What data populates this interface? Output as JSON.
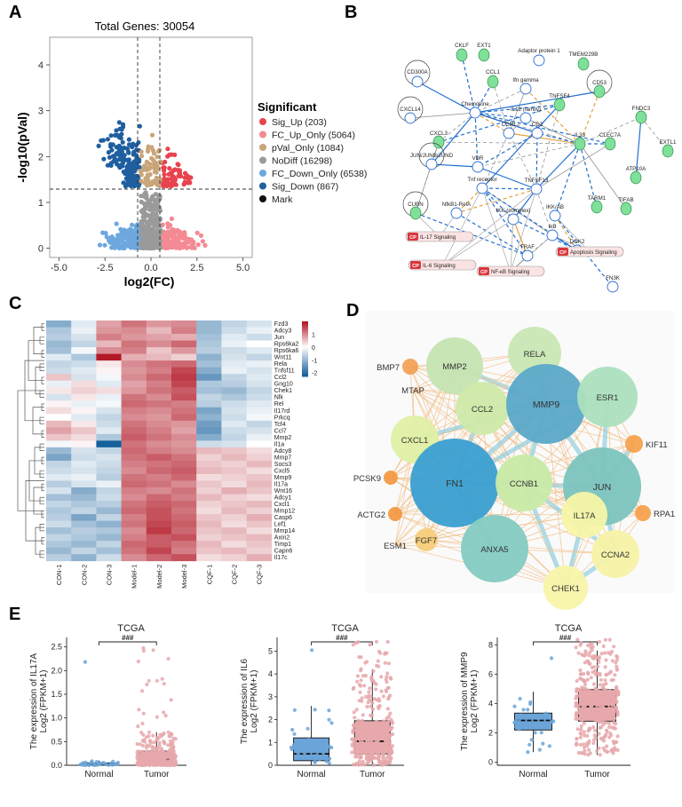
{
  "panel_labels": {
    "a": "A",
    "b": "B",
    "c": "C",
    "d": "D",
    "e": "E"
  },
  "volcano": {
    "title": "Total Genes: 30054",
    "xlabel": "log2(FC)",
    "ylabel": "-log10(pVal)",
    "legend_title": "Significant",
    "legend": [
      {
        "label": "Sig_Up (203)",
        "color": "#e8434f"
      },
      {
        "label": "FC_Up_Only (5064)",
        "color": "#f48a93"
      },
      {
        "label": "pVal_Only (1084)",
        "color": "#c9a57a"
      },
      {
        "label": "NoDiff (16298)",
        "color": "#9a9a9a"
      },
      {
        "label": "FC_Down_Only (6538)",
        "color": "#6ea7de"
      },
      {
        "label": "Sig_Down (867)",
        "color": "#1f5fa0"
      },
      {
        "label": "Mark",
        "color": "#111111"
      }
    ],
    "xticks": [
      "-5.0",
      "-2.5",
      "0.0",
      "2.5",
      "5.0"
    ],
    "yticks": [
      "0",
      "1",
      "2",
      "3",
      "4"
    ]
  },
  "network_b": {
    "nodes": [
      "CD300A",
      "CKLF",
      "EXT1",
      "CCL1",
      "Adaptor protein 1",
      "TMEM229B",
      "Ifn gamma",
      "CD53",
      "CXCL14",
      "Chemokine",
      "IL12 (family)",
      "TNFSF4",
      "FNDC3",
      "CXCL3",
      "CCR1",
      "CD3",
      "IL33",
      "CLEC7A",
      "EXTL1",
      "JUN/JUNB/JUND",
      "VDR",
      "Tnf receptor",
      "TNFSF13",
      "IKK/AB",
      "ATP10A",
      "NfkB1-RelA",
      "IKK (complex)",
      "IkB",
      "TARM1",
      "TIFAB",
      "CUBN",
      "TRAF",
      "DOK2",
      "FN3K"
    ],
    "signaling": [
      "IL-17 Signaling",
      "IL-6 Signaling",
      "NF-κB Signaling",
      "Apoptosis Signaling"
    ],
    "cp_tag": "CP"
  },
  "heatmap": {
    "columns": [
      "CON-1",
      "CON-2",
      "CON-3",
      "Model-1",
      "Model-2",
      "Model-3",
      "CQF-1",
      "CQF-2",
      "CQF-3"
    ],
    "rows": [
      "Fzd3",
      "Adcy3",
      "Jun",
      "Rps6ka2",
      "Rps6ka6",
      "Wnt11",
      "Rela",
      "Tnfsf11",
      "Ccl2",
      "Gng10",
      "Chek1",
      "Nlk",
      "Rel",
      "Il17rd",
      "Prkcq",
      "Tcf4",
      "Ccl7",
      "Mmp2",
      "Il1a",
      "Adcy8",
      "Mmp7",
      "Socs3",
      "Cxcl5",
      "Mmp9",
      "Il17a",
      "Wnt16",
      "Adcy1",
      "Cxcl1",
      "Mmp12",
      "Casp6",
      "Lef1",
      "Mmp14",
      "Axin2",
      "Timp1",
      "Capn6",
      "Il17c"
    ],
    "values": [
      [
        -1.2,
        -0.3,
        0.8,
        1.2,
        0.9,
        1.0,
        -1.0,
        -0.6,
        -0.4
      ],
      [
        -0.8,
        -0.2,
        0.9,
        1.0,
        0.6,
        1.1,
        -1.0,
        -0.5,
        -0.2
      ],
      [
        -0.7,
        -0.4,
        1.1,
        0.9,
        0.8,
        0.7,
        -0.9,
        -0.3,
        -0.5
      ],
      [
        -1.0,
        -0.6,
        0.6,
        1.2,
        1.0,
        1.3,
        -0.8,
        -0.2,
        0.0
      ],
      [
        -0.9,
        -0.1,
        1.0,
        1.1,
        0.5,
        0.9,
        -0.7,
        -0.5,
        -0.3
      ],
      [
        -0.3,
        -0.8,
        2.0,
        0.7,
        0.6,
        0.4,
        -1.1,
        -0.4,
        -0.6
      ],
      [
        -0.6,
        -0.5,
        0.2,
        1.0,
        1.2,
        1.3,
        -0.9,
        -0.3,
        -0.2
      ],
      [
        -0.5,
        -0.3,
        0.1,
        0.9,
        1.1,
        1.6,
        -1.2,
        -0.2,
        -0.4
      ],
      [
        0.5,
        -0.4,
        -0.1,
        1.0,
        1.3,
        1.7,
        -1.5,
        -0.6,
        -0.3
      ],
      [
        -0.2,
        0.3,
        -0.3,
        0.8,
        1.1,
        1.6,
        -0.8,
        -0.7,
        -0.4
      ],
      [
        0.2,
        0.4,
        0.3,
        0.9,
        1.2,
        1.4,
        -0.9,
        -1.0,
        -0.6
      ],
      [
        -0.4,
        0.2,
        -0.2,
        1.2,
        1.0,
        1.5,
        -0.6,
        -0.8,
        -0.5
      ],
      [
        0.1,
        -0.2,
        -0.1,
        1.3,
        1.2,
        1.1,
        -0.7,
        -0.5,
        -0.3
      ],
      [
        0.3,
        0.1,
        -0.4,
        1.1,
        1.0,
        1.2,
        -1.3,
        -0.4,
        -0.2
      ],
      [
        0.0,
        -0.3,
        -0.6,
        1.0,
        0.9,
        1.3,
        -1.1,
        -0.5,
        -0.1
      ],
      [
        0.6,
        0.2,
        -0.5,
        1.2,
        1.0,
        0.9,
        -1.4,
        -0.3,
        -0.6
      ],
      [
        0.8,
        0.5,
        -0.3,
        1.3,
        1.1,
        0.8,
        -1.5,
        -0.5,
        -0.4
      ],
      [
        0.5,
        0.3,
        -0.8,
        1.4,
        1.2,
        1.0,
        -1.2,
        -0.6,
        -0.2
      ],
      [
        -0.1,
        0.1,
        -2.3,
        1.2,
        1.0,
        0.9,
        -0.5,
        -0.4,
        0.0
      ],
      [
        -1.0,
        -0.4,
        -0.6,
        1.3,
        1.1,
        1.0,
        0.6,
        0.5,
        0.3
      ],
      [
        -1.3,
        -0.5,
        -0.4,
        1.2,
        1.4,
        1.2,
        0.4,
        0.6,
        0.4
      ],
      [
        -0.6,
        -0.3,
        -0.5,
        1.1,
        1.2,
        1.3,
        0.5,
        0.4,
        0.6
      ],
      [
        -0.5,
        -0.4,
        -0.6,
        1.0,
        1.3,
        1.4,
        0.6,
        0.5,
        0.3
      ],
      [
        -0.3,
        -0.2,
        -0.7,
        1.2,
        1.1,
        1.3,
        0.3,
        0.4,
        0.5
      ],
      [
        -0.7,
        -0.4,
        -0.2,
        1.3,
        1.2,
        1.0,
        0.5,
        0.3,
        0.6
      ],
      [
        -0.4,
        -1.2,
        -0.6,
        1.1,
        1.0,
        1.2,
        0.4,
        0.7,
        0.5
      ],
      [
        -0.9,
        -1.0,
        -0.5,
        1.0,
        1.3,
        1.1,
        0.6,
        0.4,
        0.3
      ],
      [
        -0.6,
        -0.8,
        -0.7,
        1.2,
        1.4,
        1.3,
        0.4,
        0.5,
        0.6
      ],
      [
        -0.8,
        -0.6,
        -1.0,
        1.3,
        1.5,
        1.2,
        0.3,
        0.6,
        0.4
      ],
      [
        -0.7,
        -1.3,
        -0.6,
        1.1,
        1.5,
        1.3,
        0.5,
        0.4,
        0.7
      ],
      [
        -0.5,
        -0.9,
        -1.1,
        1.2,
        1.6,
        1.4,
        0.6,
        0.3,
        0.5
      ],
      [
        -0.9,
        -0.7,
        -0.8,
        1.0,
        1.7,
        1.3,
        0.5,
        0.6,
        0.3
      ],
      [
        -0.6,
        -0.8,
        -1.0,
        1.1,
        1.4,
        1.5,
        0.4,
        0.5,
        0.6
      ],
      [
        -0.8,
        -1.0,
        -0.6,
        1.3,
        1.4,
        1.2,
        0.6,
        0.3,
        0.5
      ],
      [
        -1.0,
        -0.6,
        -0.9,
        1.2,
        1.6,
        1.1,
        0.5,
        0.6,
        0.4
      ],
      [
        -0.7,
        -1.1,
        -0.5,
        1.0,
        1.3,
        1.5,
        0.3,
        0.4,
        0.7
      ]
    ],
    "scale_ticks": [
      "1",
      "0",
      "-1",
      "-2"
    ]
  },
  "network_d": {
    "nodes": [
      {
        "label": "MMP2",
        "color": "#c5e4b2"
      },
      {
        "label": "RELA",
        "color": "#c9e7b4"
      },
      {
        "label": "BMP7",
        "color": "#f2a257"
      },
      {
        "label": "MTAP",
        "color": "#f7c89a"
      },
      {
        "label": "CCL2",
        "color": "#cfe9a9"
      },
      {
        "label": "MMP9",
        "color": "#5ba9c8"
      },
      {
        "label": "ESR1",
        "color": "#ace0be"
      },
      {
        "label": "CXCL1",
        "color": "#dff0a4"
      },
      {
        "label": "KIF11",
        "color": "#f5a24f"
      },
      {
        "label": "PCSK9",
        "color": "#f29a45"
      },
      {
        "label": "FN1",
        "color": "#3a9fd1"
      },
      {
        "label": "CCNB1",
        "color": "#c8eaa6"
      },
      {
        "label": "JUN",
        "color": "#7cc4bf"
      },
      {
        "label": "ACTG2",
        "color": "#f29a45"
      },
      {
        "label": "RPA1",
        "color": "#f5a24f"
      },
      {
        "label": "IL17A",
        "color": "#f7f5a6"
      },
      {
        "label": "ESM1",
        "color": "#f3b77e"
      },
      {
        "label": "FGF7",
        "color": "#f7cd7a"
      },
      {
        "label": "ANXA5",
        "color": "#84cbc2"
      },
      {
        "label": "CCNA2",
        "color": "#f7f2a6"
      },
      {
        "label": "CHEK1",
        "color": "#f8f4a8"
      }
    ]
  },
  "boxplots": [
    {
      "title": "TCGA",
      "ylabel1": "The expression of IL17A",
      "ylabel2": "Log2 (FPKM+1)",
      "sig": "###",
      "yticks": [
        "0.0",
        "0.5",
        "1.0",
        "1.5",
        "2.0",
        "2.5"
      ],
      "ylim": [
        0,
        2.7
      ],
      "groups": [
        {
          "name": "Normal",
          "min": 0.0,
          "q1": 0.01,
          "median": 0.03,
          "q3": 0.05,
          "max": 0.1,
          "color": "#6ba4d8",
          "n": 35
        },
        {
          "name": "Tumor",
          "min": 0.0,
          "q1": 0.04,
          "median": 0.12,
          "q3": 0.3,
          "max": 0.7,
          "color": "#e6a8ab",
          "n": 350
        }
      ]
    },
    {
      "title": "TCGA",
      "ylabel1": "The expression of IL6",
      "ylabel2": "Log2 (FPKM+1)",
      "sig": "###",
      "yticks": [
        "0",
        "1",
        "2",
        "3",
        "4",
        "5"
      ],
      "ylim": [
        0,
        5.6
      ],
      "groups": [
        {
          "name": "Normal",
          "min": 0.0,
          "q1": 0.2,
          "median": 0.5,
          "q3": 1.2,
          "max": 2.6,
          "color": "#6ba4d8",
          "n": 35
        },
        {
          "name": "Tumor",
          "min": 0.0,
          "q1": 0.5,
          "median": 1.05,
          "q3": 1.95,
          "max": 4.2,
          "color": "#e6a8ab",
          "n": 350
        }
      ]
    },
    {
      "title": "TCGA",
      "ylabel1": "The expression of MMP9",
      "ylabel2": "Log2 (FPKM+1)",
      "sig": "###",
      "yticks": [
        "0",
        "2",
        "4",
        "6",
        "8"
      ],
      "ylim": [
        -0.2,
        8.5
      ],
      "groups": [
        {
          "name": "Normal",
          "min": 0.7,
          "q1": 2.2,
          "median": 2.85,
          "q3": 3.35,
          "max": 4.8,
          "color": "#6ba4d8",
          "n": 35
        },
        {
          "name": "Tumor",
          "min": 0.5,
          "q1": 2.8,
          "median": 3.8,
          "q3": 4.95,
          "max": 7.6,
          "color": "#e6a8ab",
          "n": 350
        }
      ]
    }
  ],
  "chart_data": [
    {
      "type": "scatter",
      "title": "Total Genes: 30054",
      "xlabel": "log2(FC)",
      "ylabel": "-log10(pVal)",
      "xlim": [
        -5.5,
        5.5
      ],
      "ylim": [
        -0.2,
        4.6
      ],
      "series": [
        {
          "name": "Sig_Up",
          "count": 203
        },
        {
          "name": "FC_Up_Only",
          "count": 5064
        },
        {
          "name": "pVal_Only",
          "count": 1084
        },
        {
          "name": "NoDiff",
          "count": 16298
        },
        {
          "name": "FC_Down_Only",
          "count": 6538
        },
        {
          "name": "Sig_Down",
          "count": 867
        },
        {
          "name": "Mark",
          "count": 0
        }
      ],
      "thresholds": {
        "fc": [
          -0.58,
          0.58
        ],
        "pval": 1.3
      }
    },
    {
      "type": "heatmap",
      "rows": "see heatmap.rows",
      "columns": "see heatmap.columns",
      "zlim": [
        -2.3,
        2
      ]
    },
    {
      "type": "box",
      "title": "TCGA",
      "categories": [
        "Normal",
        "Tumor"
      ],
      "ylabel": "The expression of IL17A Log2 (FPKM+1)"
    },
    {
      "type": "box",
      "title": "TCGA",
      "categories": [
        "Normal",
        "Tumor"
      ],
      "ylabel": "The expression of IL6 Log2 (FPKM+1)"
    },
    {
      "type": "box",
      "title": "TCGA",
      "categories": [
        "Normal",
        "Tumor"
      ],
      "ylabel": "The expression of MMP9 Log2 (FPKM+1)"
    }
  ]
}
